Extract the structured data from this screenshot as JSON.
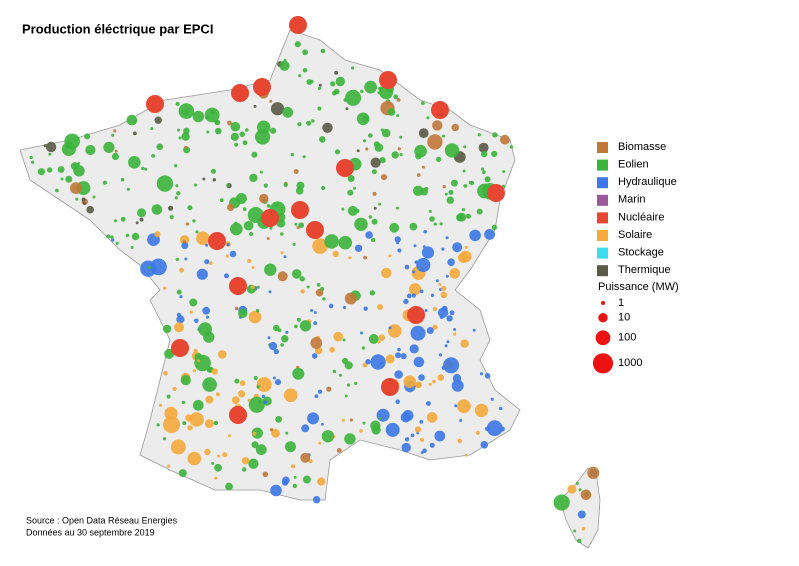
{
  "title": "Production éléctrique par EPCI",
  "legend": {
    "items": [
      {
        "label": "Biomasse",
        "color": "#c07838"
      },
      {
        "label": "Eolien",
        "color": "#3cb43c"
      },
      {
        "label": "Hydraulique",
        "color": "#3c78e6"
      },
      {
        "label": "Marin",
        "color": "#9a5a9a"
      },
      {
        "label": "Nucléaire",
        "color": "#e64632"
      },
      {
        "label": "Solaire",
        "color": "#f5aa3c"
      },
      {
        "label": "Stockage",
        "color": "#3cdcf0"
      },
      {
        "label": "Thermique",
        "color": "#5a5a46"
      }
    ],
    "size_title": "Puissance (MW)",
    "sizes": [
      1,
      10,
      100,
      1000
    ],
    "size_color": "#ee1111"
  },
  "source": [
    "Source : Open Data Réseau Energies",
    "Données au 30 septembre 2019"
  ]
}
